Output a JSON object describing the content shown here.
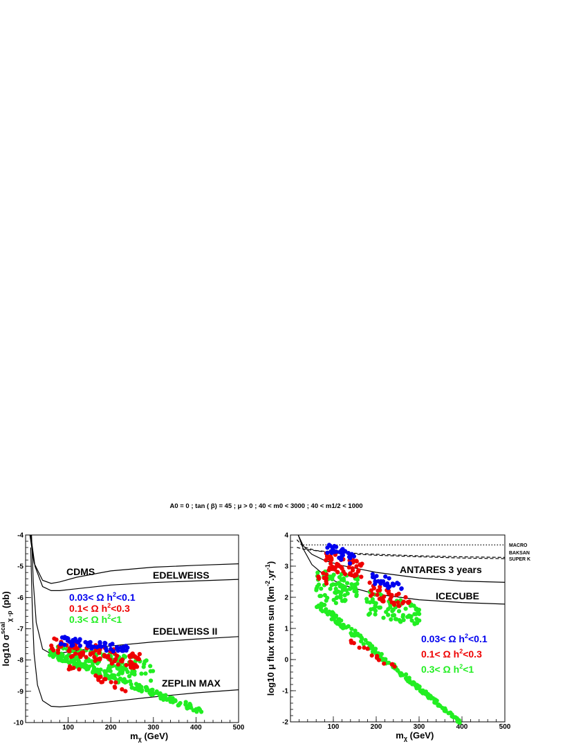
{
  "title": "A0 = 0 ; tan ( β) = 45 ; μ > 0 ;  40 < m0 < 3000 ; 40 < m1/2 < 1000",
  "colors": {
    "blue": "#0000ee",
    "red": "#ee0000",
    "green": "#22ee22",
    "black": "#000000"
  },
  "legend": [
    {
      "name": "blue",
      "pre": "0.03< Ω h",
      "sup": "2",
      "post": "<0.1",
      "color": "#0000ee"
    },
    {
      "name": "red",
      "pre": "0.1< Ω h",
      "sup": "2",
      "post": "<0.3",
      "color": "#ee0000"
    },
    {
      "name": "green",
      "pre": "0.3< Ω h",
      "sup": "2",
      "post": "<1",
      "color": "#22ee22"
    }
  ],
  "chart_data": [
    {
      "type": "scatter",
      "xlabel": "m",
      "xlabel_sub": "χ",
      "xlabel_unit": " (GeV)",
      "ylabel_pre": "log10 σ",
      "ylabel_sup": "scal",
      "ylabel_sub": "χ -p",
      "ylabel_post": " (pb)",
      "xlim": [
        0,
        500
      ],
      "ylim": [
        -10,
        -4
      ],
      "xticks": [
        100,
        200,
        300,
        400,
        500
      ],
      "yticks": [
        -10,
        -9,
        -8,
        -7,
        -6,
        -5,
        -4
      ],
      "curves": [
        {
          "name": "CDMS",
          "label": "CDMS",
          "points": [
            [
              10,
              -4
            ],
            [
              20,
              -4.9
            ],
            [
              40,
              -5.45
            ],
            [
              60,
              -5.55
            ],
            [
              80,
              -5.5
            ],
            [
              120,
              -5.35
            ],
            [
              200,
              -5.15
            ],
            [
              300,
              -5.03
            ],
            [
              400,
              -4.97
            ],
            [
              500,
              -4.92
            ]
          ]
        },
        {
          "name": "EDELWEISS",
          "label": "EDELWEISS",
          "points": [
            [
              12,
              -4
            ],
            [
              22,
              -5
            ],
            [
              40,
              -5.65
            ],
            [
              60,
              -5.78
            ],
            [
              80,
              -5.78
            ],
            [
              120,
              -5.72
            ],
            [
              200,
              -5.6
            ],
            [
              300,
              -5.52
            ],
            [
              400,
              -5.47
            ],
            [
              500,
              -5.42
            ]
          ]
        },
        {
          "name": "EDELWEISS II",
          "label": "EDELWEISS II",
          "points": [
            [
              14,
              -4
            ],
            [
              18,
              -5.5
            ],
            [
              25,
              -6.8
            ],
            [
              40,
              -7.65
            ],
            [
              60,
              -7.8
            ],
            [
              80,
              -7.78
            ],
            [
              120,
              -7.7
            ],
            [
              200,
              -7.55
            ],
            [
              300,
              -7.42
            ],
            [
              400,
              -7.33
            ],
            [
              500,
              -7.25
            ]
          ]
        },
        {
          "name": "ZEPLIN MAX",
          "label": "ZEPLIN MAX",
          "points": [
            [
              12,
              -4.4
            ],
            [
              16,
              -6.5
            ],
            [
              20,
              -7.8
            ],
            [
              28,
              -8.8
            ],
            [
              40,
              -9.3
            ],
            [
              60,
              -9.48
            ],
            [
              80,
              -9.5
            ],
            [
              120,
              -9.45
            ],
            [
              200,
              -9.33
            ],
            [
              300,
              -9.18
            ],
            [
              400,
              -9.05
            ],
            [
              500,
              -8.95
            ]
          ]
        }
      ],
      "series": [
        {
          "name": "0.03< Ω h2<0.1",
          "color": "#0000ee",
          "regions": [
            {
              "x0": 80,
              "x1": 240,
              "ytop0": -7.2,
              "ytop1": -7.55,
              "ybot0": -7.5,
              "ybot1": -7.8,
              "n": 60
            }
          ]
        },
        {
          "name": "0.1< Ω h2<0.3",
          "color": "#ee0000",
          "regions": [
            {
              "x0": 60,
              "x1": 270,
              "ytop0": -7.25,
              "ytop1": -7.8,
              "ybot0": -7.8,
              "ybot1": -8.3,
              "n": 95
            },
            {
              "x0": 100,
              "x1": 250,
              "ytop0": -8.1,
              "ytop1": -8.9,
              "ybot0": -8.3,
              "ybot1": -9.1,
              "n": 20
            }
          ]
        },
        {
          "name": "0.3< Ω h2<1",
          "color": "#22ee22",
          "regions": [
            {
              "x0": 55,
              "x1": 300,
              "ytop0": -7.5,
              "ytop1": -8.0,
              "ybot0": -8.0,
              "ybot1": -8.7,
              "n": 130
            },
            {
              "x0": 60,
              "x1": 415,
              "ytop0": -7.7,
              "ytop1": -9.55,
              "ybot0": -7.9,
              "ybot1": -9.75,
              "n": 150
            }
          ]
        }
      ]
    },
    {
      "type": "scatter",
      "xlabel": "m",
      "xlabel_sub": "χ",
      "xlabel_unit": " (GeV)",
      "ylabel_pre": "log10 μ flux from sun (km",
      "ylabel_sup": "-2",
      "ylabel_mid": ".yr",
      "ylabel_sup2": "-1",
      "ylabel_post": ")",
      "xlim": [
        0,
        500
      ],
      "ylim": [
        -2,
        4
      ],
      "xticks": [
        100,
        200,
        300,
        400,
        500
      ],
      "yticks": [
        -2,
        -1,
        0,
        1,
        2,
        3,
        4
      ],
      "curves": [
        {
          "name": "ANTARES 3 years",
          "label": "ANTARES 3 years",
          "style": "solid",
          "points": [
            [
              18,
              4
            ],
            [
              30,
              3.65
            ],
            [
              50,
              3.38
            ],
            [
              80,
              3.18
            ],
            [
              120,
              3.02
            ],
            [
              200,
              2.8
            ],
            [
              300,
              2.62
            ],
            [
              400,
              2.52
            ],
            [
              500,
              2.48
            ]
          ]
        },
        {
          "name": "ICECUBE",
          "label": "ICECUBE",
          "style": "solid",
          "points": [
            [
              18,
              4
            ],
            [
              30,
              3.55
            ],
            [
              50,
              3.05
            ],
            [
              80,
              2.7
            ],
            [
              120,
              2.4
            ],
            [
              200,
              2.1
            ],
            [
              300,
              1.92
            ],
            [
              400,
              1.83
            ],
            [
              500,
              1.78
            ]
          ]
        },
        {
          "name": "MACRO",
          "label": "MACRO",
          "style": "dotted",
          "points": [
            [
              30,
              3.68
            ],
            [
              500,
              3.68
            ]
          ]
        },
        {
          "name": "BAKSAN",
          "label": "BAKSAN",
          "style": "dashed",
          "points": [
            [
              15,
              3.85
            ],
            [
              30,
              3.62
            ],
            [
              60,
              3.5
            ],
            [
              100,
              3.45
            ],
            [
              200,
              3.38
            ],
            [
              300,
              3.33
            ],
            [
              400,
              3.3
            ],
            [
              500,
              3.28
            ]
          ]
        },
        {
          "name": "SUPER K",
          "label": "SUPER K",
          "style": "dashed",
          "points": [
            [
              15,
              3.6
            ],
            [
              30,
              3.55
            ],
            [
              100,
              3.42
            ],
            [
              200,
              3.35
            ],
            [
              300,
              3.3
            ],
            [
              400,
              3.26
            ],
            [
              500,
              3.24
            ]
          ]
        }
      ],
      "series": [
        {
          "name": "0.03< Ω h2<0.1",
          "color": "#0000ee",
          "regions": [
            {
              "x0": 85,
              "x1": 150,
              "ytop0": 3.8,
              "ytop1": 3.4,
              "ybot0": 3.4,
              "ybot1": 3.0,
              "n": 35
            },
            {
              "x0": 190,
              "x1": 260,
              "ytop0": 2.8,
              "ytop1": 2.5,
              "ybot0": 2.4,
              "ybot1": 2.2,
              "n": 25
            }
          ]
        },
        {
          "name": "0.1< Ω h2<0.3",
          "color": "#ee0000",
          "regions": [
            {
              "x0": 80,
              "x1": 170,
              "ytop0": 3.5,
              "ytop1": 3.1,
              "ybot0": 2.9,
              "ybot1": 2.6,
              "n": 55
            },
            {
              "x0": 60,
              "x1": 85,
              "ytop0": 2.8,
              "ytop1": 2.8,
              "ybot0": 2.4,
              "ybot1": 2.4,
              "n": 8
            },
            {
              "x0": 180,
              "x1": 280,
              "ytop0": 2.5,
              "ytop1": 2.0,
              "ybot0": 2.0,
              "ybot1": 1.6,
              "n": 40
            },
            {
              "x0": 140,
              "x1": 245,
              "ytop0": 0.7,
              "ytop1": -0.2,
              "ybot0": 0.5,
              "ybot1": -0.4,
              "n": 14
            }
          ]
        },
        {
          "name": "0.3< Ω h2<1",
          "color": "#22ee22",
          "regions": [
            {
              "x0": 60,
              "x1": 160,
              "ytop0": 2.9,
              "ytop1": 2.7,
              "ybot0": 1.5,
              "ybot1": 2.0,
              "n": 85
            },
            {
              "x0": 175,
              "x1": 305,
              "ytop0": 2.3,
              "ytop1": 1.7,
              "ybot0": 1.4,
              "ybot1": 1.1,
              "n": 75
            },
            {
              "x0": 60,
              "x1": 395,
              "ytop0": 2.0,
              "ytop1": -1.95,
              "ybot0": 1.7,
              "ybot1": -2.05,
              "n": 170
            }
          ]
        }
      ]
    }
  ]
}
